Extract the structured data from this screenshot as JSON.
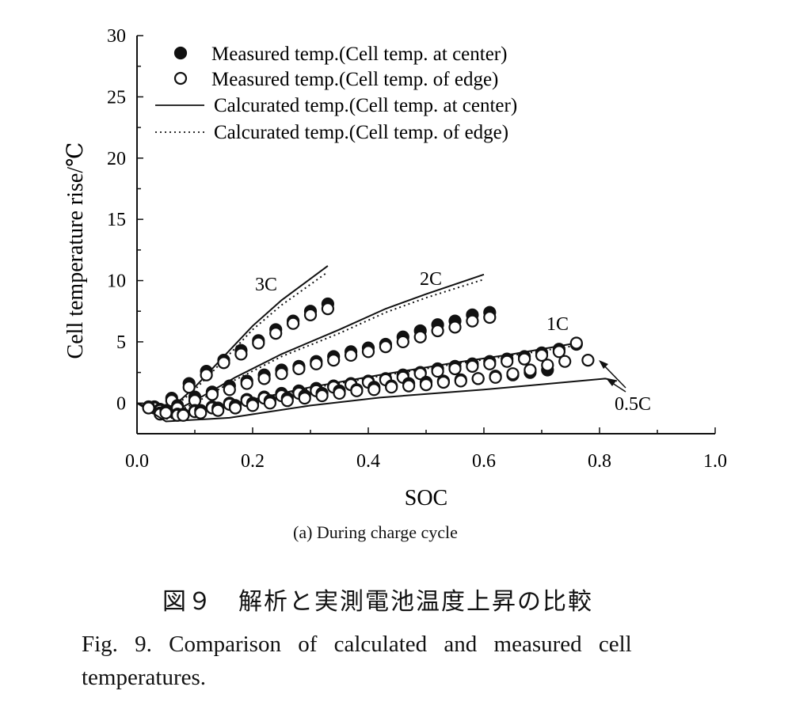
{
  "chart_data": {
    "type": "scatter+line",
    "title": "",
    "xlabel": "SOC",
    "ylabel": "Cell temperature rise/℃",
    "xlim": [
      0,
      1.0
    ],
    "ylim": [
      -2.5,
      30
    ],
    "xticks": [
      "0.0",
      "0.2",
      "0.4",
      "0.6",
      "0.8",
      "1.0"
    ],
    "xtick_values": [
      0,
      0.2,
      0.4,
      0.6,
      0.8,
      1.0
    ],
    "yticks": [
      "0",
      "5",
      "10",
      "15",
      "20",
      "25",
      "30"
    ],
    "ytick_values": [
      0,
      5,
      10,
      15,
      20,
      25,
      30
    ],
    "grid": false,
    "legend_position": "top-left",
    "legend": [
      {
        "label": "Measured temp.(Cell temp. at center)",
        "style": "filled-circle"
      },
      {
        "label": "Measured temp.(Cell temp. of edge)",
        "style": "open-circle"
      },
      {
        "label": "Calcurated temp.(Cell temp. at center)",
        "style": "solid"
      },
      {
        "label": "Calcurated temp.(Cell temp. of edge)",
        "style": "dotted"
      }
    ],
    "annotations": [
      "3C",
      "2C",
      "1C",
      "0.5C"
    ],
    "series": [
      {
        "name": "3C calculated center",
        "style": "solid",
        "x": [
          0,
          0.05,
          0.1,
          0.15,
          0.2,
          0.25,
          0.33
        ],
        "y": [
          0,
          -0.8,
          1.3,
          3.8,
          6.3,
          8.4,
          11.2
        ]
      },
      {
        "name": "3C calculated edge",
        "style": "dotted",
        "x": [
          0,
          0.05,
          0.1,
          0.15,
          0.2,
          0.25,
          0.33
        ],
        "y": [
          0,
          -0.9,
          1.1,
          3.5,
          6.0,
          8.0,
          10.7
        ]
      },
      {
        "name": "3C measured center",
        "style": "filled-circle",
        "x": [
          0.03,
          0.06,
          0.09,
          0.12,
          0.15,
          0.18,
          0.21,
          0.24,
          0.27,
          0.3,
          0.33
        ],
        "y": [
          -0.3,
          0.4,
          1.6,
          2.6,
          3.5,
          4.3,
          5.1,
          6.0,
          6.7,
          7.5,
          8.1
        ]
      },
      {
        "name": "3C measured edge",
        "style": "open-circle",
        "x": [
          0.03,
          0.06,
          0.09,
          0.12,
          0.15,
          0.18,
          0.21,
          0.24,
          0.27,
          0.3,
          0.33
        ],
        "y": [
          -0.4,
          0.2,
          1.3,
          2.3,
          3.3,
          4.0,
          4.9,
          5.7,
          6.5,
          7.2,
          7.7
        ]
      },
      {
        "name": "2C calculated center",
        "style": "solid",
        "x": [
          0,
          0.05,
          0.1,
          0.17,
          0.25,
          0.35,
          0.43,
          0.5,
          0.6
        ],
        "y": [
          0,
          -1.0,
          0.2,
          2.1,
          4.0,
          6.0,
          7.7,
          8.9,
          10.5
        ]
      },
      {
        "name": "2C calculated edge",
        "style": "dotted",
        "x": [
          0,
          0.05,
          0.1,
          0.17,
          0.25,
          0.35,
          0.43,
          0.5,
          0.6
        ],
        "y": [
          0,
          -1.1,
          0.0,
          1.9,
          3.8,
          5.7,
          7.4,
          8.6,
          10.1
        ]
      },
      {
        "name": "2C measured center",
        "style": "filled-circle",
        "x": [
          0.04,
          0.07,
          0.1,
          0.13,
          0.16,
          0.19,
          0.22,
          0.25,
          0.28,
          0.31,
          0.34,
          0.37,
          0.4,
          0.43,
          0.46,
          0.49,
          0.52,
          0.55,
          0.58,
          0.61
        ],
        "y": [
          -0.5,
          -0.2,
          0.5,
          0.9,
          1.4,
          1.8,
          2.3,
          2.7,
          3.0,
          3.4,
          3.8,
          4.2,
          4.5,
          4.8,
          5.4,
          5.9,
          6.4,
          6.7,
          7.2,
          7.4
        ]
      },
      {
        "name": "2C measured edge",
        "style": "open-circle",
        "x": [
          0.04,
          0.07,
          0.1,
          0.13,
          0.16,
          0.19,
          0.22,
          0.25,
          0.28,
          0.31,
          0.34,
          0.37,
          0.4,
          0.43,
          0.46,
          0.49,
          0.52,
          0.55,
          0.58,
          0.61
        ],
        "y": [
          -0.6,
          -0.4,
          0.2,
          0.7,
          1.1,
          1.6,
          2.0,
          2.4,
          2.8,
          3.2,
          3.5,
          3.9,
          4.2,
          4.6,
          5.0,
          5.4,
          5.9,
          6.2,
          6.7,
          7.0
        ]
      },
      {
        "name": "1C calculated center",
        "style": "solid",
        "x": [
          0,
          0.05,
          0.1,
          0.2,
          0.3,
          0.42,
          0.55,
          0.65,
          0.76
        ],
        "y": [
          0,
          -1.2,
          -0.8,
          0.3,
          1.3,
          2.3,
          3.3,
          4.0,
          4.9
        ]
      },
      {
        "name": "1C calculated edge",
        "style": "dotted",
        "x": [
          0,
          0.05,
          0.1,
          0.2,
          0.3,
          0.42,
          0.55,
          0.65,
          0.76
        ],
        "y": [
          0,
          -1.3,
          -0.9,
          0.2,
          1.2,
          2.2,
          3.2,
          3.9,
          4.7
        ]
      },
      {
        "name": "1C measured center",
        "style": "filled-circle",
        "x": [
          0.04,
          0.07,
          0.1,
          0.13,
          0.16,
          0.19,
          0.22,
          0.25,
          0.28,
          0.31,
          0.34,
          0.37,
          0.4,
          0.43,
          0.46,
          0.49,
          0.52,
          0.55,
          0.58,
          0.61,
          0.64,
          0.67,
          0.7,
          0.73,
          0.76
        ],
        "y": [
          -0.8,
          -0.9,
          -0.6,
          -0.3,
          0.0,
          0.3,
          0.5,
          0.8,
          1.0,
          1.2,
          1.4,
          1.6,
          1.8,
          2.0,
          2.3,
          2.5,
          2.8,
          3.0,
          3.2,
          3.4,
          3.6,
          3.8,
          4.1,
          4.4,
          4.8
        ]
      },
      {
        "name": "1C measured edge",
        "style": "open-circle",
        "x": [
          0.04,
          0.07,
          0.1,
          0.13,
          0.16,
          0.19,
          0.22,
          0.25,
          0.28,
          0.31,
          0.34,
          0.37,
          0.4,
          0.43,
          0.46,
          0.49,
          0.52,
          0.55,
          0.58,
          0.61,
          0.64,
          0.67,
          0.7,
          0.73,
          0.76
        ],
        "y": [
          -0.9,
          -1.0,
          -0.7,
          -0.4,
          -0.1,
          0.2,
          0.4,
          0.6,
          0.8,
          1.0,
          1.3,
          1.5,
          1.7,
          1.9,
          2.1,
          2.4,
          2.6,
          2.8,
          3.0,
          3.2,
          3.4,
          3.6,
          3.9,
          4.2,
          4.9
        ]
      },
      {
        "name": "0.5C calculated center",
        "style": "solid",
        "x": [
          0,
          0.05,
          0.16,
          0.3,
          0.42,
          0.6,
          0.81,
          0.83
        ],
        "y": [
          0,
          -1.5,
          -1.2,
          -0.2,
          0.45,
          1.1,
          2.0,
          1.8
        ]
      },
      {
        "name": "0.5C measured center",
        "style": "filled-circle",
        "x": [
          0.02,
          0.05,
          0.08,
          0.11,
          0.14,
          0.17,
          0.2,
          0.23,
          0.26,
          0.29,
          0.32,
          0.35,
          0.38,
          0.41,
          0.44,
          0.47,
          0.5,
          0.53,
          0.56,
          0.59,
          0.62,
          0.65,
          0.68,
          0.71
        ],
        "y": [
          -0.3,
          -0.6,
          -0.9,
          -0.6,
          -0.4,
          -0.2,
          0.0,
          0.2,
          0.4,
          0.6,
          0.8,
          1.0,
          1.1,
          1.3,
          1.4,
          1.6,
          1.7,
          1.8,
          1.9,
          2.0,
          2.2,
          2.3,
          2.5,
          2.7
        ]
      },
      {
        "name": "0.5C measured edge",
        "style": "open-circle",
        "x": [
          0.02,
          0.05,
          0.08,
          0.11,
          0.14,
          0.17,
          0.2,
          0.23,
          0.26,
          0.29,
          0.32,
          0.35,
          0.38,
          0.41,
          0.44,
          0.47,
          0.5,
          0.53,
          0.56,
          0.59,
          0.62,
          0.65,
          0.68,
          0.71,
          0.74,
          0.78
        ],
        "y": [
          -0.4,
          -0.8,
          -1.0,
          -0.8,
          -0.6,
          -0.4,
          -0.2,
          0.0,
          0.2,
          0.4,
          0.6,
          0.8,
          1.0,
          1.1,
          1.3,
          1.4,
          1.5,
          1.7,
          1.8,
          2.0,
          2.1,
          2.4,
          2.7,
          3.1,
          3.4,
          3.5
        ]
      }
    ]
  },
  "caption": {
    "subtitle": "(a) During charge cycle",
    "japanese": "図９　解析と実測電池温度上昇の比較",
    "english_line1": "Fig. 9.  Comparison of calculated and measured cell",
    "english_line2": "temperatures."
  }
}
